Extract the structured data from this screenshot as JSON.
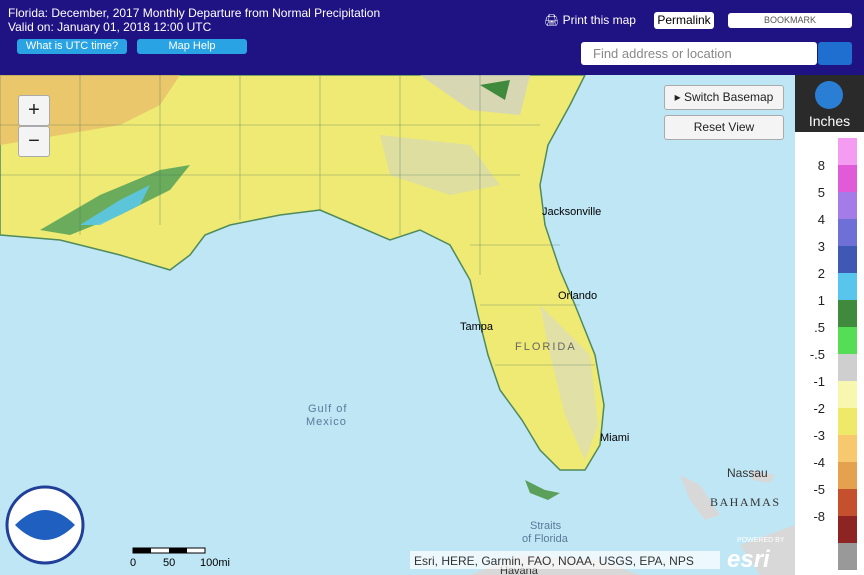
{
  "header": {
    "title": "Florida: December, 2017 Monthly Departure from Normal Precipitation",
    "valid": "Valid on: January 01, 2018 12:00 UTC",
    "buttons": [
      "What is UTC time?",
      "Map Help"
    ],
    "print": "Print this map",
    "permalink": "Permalink",
    "bookmark": "BOOKMARK",
    "search_placeholder": "Find address or location"
  },
  "map": {
    "controls": {
      "zoom_in": "+",
      "zoom_out": "−",
      "switch_basemap": "Switch Basemap",
      "reset_view": "Reset View"
    },
    "labels": [
      "Jacksonville",
      "Orlando",
      "Tampa",
      "FLORIDA",
      "Miami",
      "Gulf of",
      "Mexico",
      "Nassau",
      "BAHAMAS",
      "Straits",
      "of Florida",
      "Havana"
    ],
    "scale": [
      "0",
      "50",
      "100mi"
    ],
    "attribution": "Esri, HERE, Garmin, FAO, NOAA, USGS, EPA, NPS",
    "powered": "POWERED BY",
    "esri": "esri"
  },
  "legend": {
    "unit": "Inches",
    "labels": [
      "8",
      "5",
      "4",
      "3",
      "2",
      "1",
      ".5",
      "-.5",
      "-1",
      "-2",
      "-3",
      "-4",
      "-5",
      "-8"
    ],
    "colors": [
      "#f49cf2",
      "#e15ad8",
      "#a57be8",
      "#6f6fd8",
      "#3f58b4",
      "#58c6ec",
      "#3f8a3c",
      "#55dd55",
      "#cfcfcf",
      "#f7f7b0",
      "#efe96a",
      "#f7c86e",
      "#e4a24e",
      "#c4502d",
      "#8e2323",
      "#999999"
    ]
  }
}
